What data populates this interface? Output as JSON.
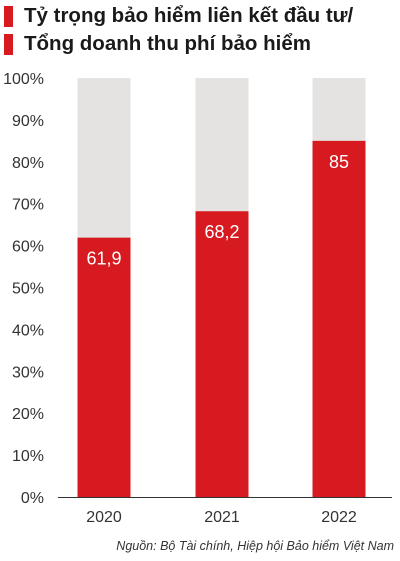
{
  "title_lines": [
    "Tỷ trọng bảo hiểm liên kết đầu tư/",
    "Tổng doanh thu phí bảo hiểm"
  ],
  "source": "Nguồn: Bộ Tài chính, Hiệp hội Bảo hiểm Việt Nam",
  "colors": {
    "bar": "#d71920",
    "background_bar": "#e5e3e1",
    "accent": "#d71920",
    "grid": "#333333"
  },
  "chart_data": {
    "type": "bar",
    "title": "Tỷ trọng bảo hiểm liên kết đầu tư/ Tổng doanh thu phí bảo hiểm",
    "categories": [
      "2020",
      "2021",
      "2022"
    ],
    "values": [
      61.9,
      68.2,
      85
    ],
    "value_labels": [
      "61,9",
      "68,2",
      "85"
    ],
    "ylim": [
      0,
      100
    ],
    "y_ticks": [
      0,
      10,
      20,
      30,
      40,
      50,
      60,
      70,
      80,
      90,
      100
    ],
    "y_tick_labels": [
      "0%",
      "10%",
      "20%",
      "30%",
      "40%",
      "50%",
      "60%",
      "70%",
      "80%",
      "90%",
      "100%"
    ],
    "xlabel": "",
    "ylabel": "",
    "grid": false,
    "background_bars_to": 100
  }
}
